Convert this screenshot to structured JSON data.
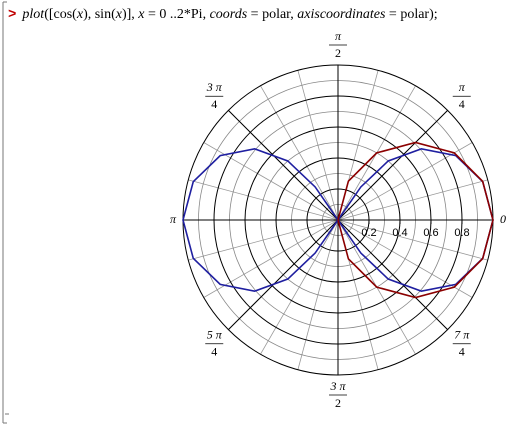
{
  "prompt": ">",
  "command": [
    {
      "text": "plot",
      "italic": true
    },
    {
      "text": "([cos(",
      "italic": false
    },
    {
      "text": "x",
      "italic": true
    },
    {
      "text": "), sin(",
      "italic": false
    },
    {
      "text": "x",
      "italic": true
    },
    {
      "text": ")], ",
      "italic": false
    },
    {
      "text": "x",
      "italic": true
    },
    {
      "text": " = 0 ..2*Pi, ",
      "italic": false
    },
    {
      "text": "coords",
      "italic": true
    },
    {
      "text": " = polar, ",
      "italic": false
    },
    {
      "text": "axiscoordinates",
      "italic": true
    },
    {
      "text": " = polar);",
      "italic": false
    }
  ],
  "chart_data": {
    "type": "polar",
    "rlim": [
      0,
      1
    ],
    "rticks": [
      0.2,
      0.4,
      0.6,
      0.8
    ],
    "rgrid": [
      0.1,
      0.2,
      0.3,
      0.4,
      0.5,
      0.6,
      0.7,
      0.8,
      0.9,
      1.0
    ],
    "thetaticks": [
      0,
      {
        "value": 0.7854,
        "numerator": "π",
        "denominator": "4"
      },
      {
        "value": 1.5708,
        "numerator": "π",
        "denominator": "2"
      },
      {
        "value": 2.3562,
        "numerator": "3 π",
        "denominator": "4"
      },
      {
        "value": 3.1416,
        "label": "π"
      },
      {
        "value": 3.927,
        "numerator": "5 π",
        "denominator": "4"
      },
      {
        "value": 4.7124,
        "numerator": "3 π",
        "denominator": "2"
      },
      {
        "value": 5.4978,
        "numerator": "7 π",
        "denominator": "4"
      }
    ],
    "series": [
      {
        "color": "#1f1fa0",
        "theta": [
          0,
          0.259,
          0.5,
          0.707,
          0.866,
          0.966,
          1,
          0.966,
          0.866,
          0.707,
          0.5,
          0.259,
          0,
          -0.259,
          -0.5,
          -0.707,
          -0.866,
          -0.966,
          -1,
          -0.966,
          -0.866,
          -0.707,
          -0.5,
          -0.259,
          0
        ],
        "r": [
          1,
          0.966,
          0.866,
          0.707,
          0.5,
          0.259,
          0,
          -0.259,
          -0.5,
          -0.707,
          -0.866,
          -0.966,
          -1,
          -0.966,
          -0.866,
          -0.707,
          -0.5,
          -0.259,
          0,
          0.259,
          0.5,
          0.707,
          0.866,
          0.966,
          1
        ]
      },
      {
        "color": "#8b0000",
        "theta": [
          -1.5708,
          -1.309,
          -1.0472,
          -0.7854,
          -0.5236,
          -0.2618,
          0,
          0.2618,
          0.5236,
          0.7854,
          1.0472,
          1.309,
          1.5708
        ],
        "r": [
          0,
          0.259,
          0.5,
          0.707,
          0.866,
          0.966,
          1,
          0.966,
          0.866,
          0.707,
          0.5,
          0.259,
          0
        ]
      }
    ]
  }
}
